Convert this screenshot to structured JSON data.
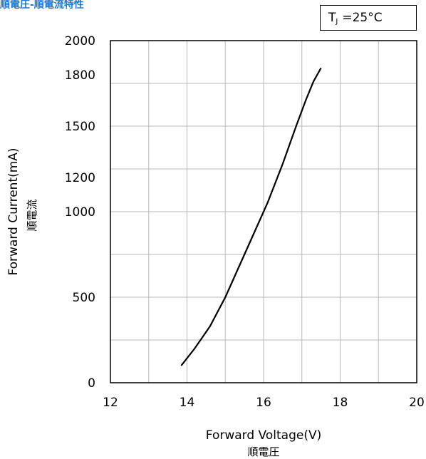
{
  "title": "順電圧-順電流特性",
  "temperature_label": {
    "symbol": "T",
    "subscript": "J",
    "value": "=25°C"
  },
  "colors": {
    "title": "#1f77d0",
    "grid": "#b8b8b8",
    "curve": "#000000"
  },
  "chart_data": {
    "type": "line",
    "title": "順電圧-順電流特性",
    "xlabel": "Forward Voltage(V)",
    "xlabel_sub": "順電圧",
    "ylabel": "Forward Current(mA)",
    "ylabel_sub": "順電流",
    "xlim": [
      12,
      20
    ],
    "ylim": [
      0,
      2000
    ],
    "xticks": [
      12,
      14,
      16,
      18,
      20
    ],
    "yticks": [
      0,
      500,
      1000,
      1200,
      1500,
      1800,
      2000
    ],
    "x_gridlines": [
      12,
      13,
      14,
      15,
      16,
      17,
      18,
      19,
      20
    ],
    "y_gridlines": [
      0,
      250,
      500,
      750,
      1000,
      1250,
      1500,
      1750,
      2000
    ],
    "grid": true,
    "legend": "none",
    "series": [
      {
        "x": [
          13.85,
          14.2,
          14.6,
          15.0,
          15.3,
          15.7,
          16.1,
          16.5,
          16.85,
          17.1,
          17.3,
          17.5
        ],
        "y": [
          100,
          200,
          330,
          500,
          650,
          850,
          1050,
          1280,
          1500,
          1650,
          1760,
          1840
        ]
      }
    ]
  }
}
